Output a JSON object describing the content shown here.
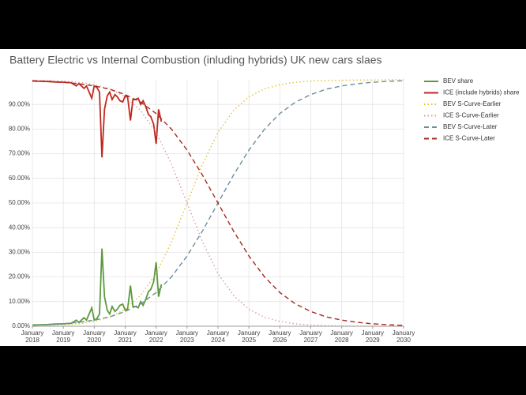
{
  "chart_data": {
    "type": "line",
    "title": "Battery Electric vs Internal Combustion (inluding hybrids) UK new cars slaes",
    "xlim": [
      2018,
      2030
    ],
    "ylim": [
      0,
      100
    ],
    "grid": true,
    "legend": "right",
    "xticks": [
      {
        "value": 2018,
        "label": "January 2018"
      },
      {
        "value": 2019,
        "label": "January 2019"
      },
      {
        "value": 2020,
        "label": "January 2020"
      },
      {
        "value": 2021,
        "label": "January 2021"
      },
      {
        "value": 2022,
        "label": "January 2022"
      },
      {
        "value": 2023,
        "label": "January 2023"
      },
      {
        "value": 2024,
        "label": "January 2024"
      },
      {
        "value": 2025,
        "label": "January 2025"
      },
      {
        "value": 2026,
        "label": "January 2026"
      },
      {
        "value": 2027,
        "label": "January 2027"
      },
      {
        "value": 2028,
        "label": "January 2028"
      },
      {
        "value": 2029,
        "label": "January 2029"
      },
      {
        "value": 2030,
        "label": "January 2030"
      }
    ],
    "yticks": [
      {
        "value": 0,
        "label": "0.00%"
      },
      {
        "value": 10,
        "label": "10.00%"
      },
      {
        "value": 20,
        "label": "20.00%"
      },
      {
        "value": 30,
        "label": "30.00%"
      },
      {
        "value": 40,
        "label": "40.00%"
      },
      {
        "value": 50,
        "label": "50.00%"
      },
      {
        "value": 60,
        "label": "60.00%"
      },
      {
        "value": 70,
        "label": "70.00%"
      },
      {
        "value": 80,
        "label": "80.00%"
      },
      {
        "value": 90,
        "label": "90.00%"
      }
    ],
    "series": [
      {
        "name": "BEV share",
        "color": "#5b9a3c",
        "dash": "solid",
        "x": [
          2018,
          2018.25,
          2018.5,
          2018.75,
          2019,
          2019.25,
          2019.42,
          2019.5,
          2019.67,
          2019.75,
          2019.92,
          2020,
          2020.08,
          2020.17,
          2020.25,
          2020.33,
          2020.42,
          2020.5,
          2020.58,
          2020.67,
          2020.75,
          2020.83,
          2020.92,
          2021,
          2021.08,
          2021.17,
          2021.25,
          2021.33,
          2021.42,
          2021.5,
          2021.58,
          2021.67,
          2021.75,
          2021.83,
          2021.92,
          2022,
          2022.08,
          2022.17
        ],
        "values": [
          0.5,
          0.6,
          0.7,
          0.9,
          1.0,
          1.2,
          2.5,
          1.5,
          3.5,
          2.5,
          7.5,
          2.5,
          3.0,
          5.0,
          31.5,
          12.0,
          6.5,
          5.0,
          8.0,
          6.0,
          7.0,
          8.5,
          9.0,
          6.5,
          7.0,
          16.5,
          8.0,
          8.0,
          7.5,
          10.0,
          8.5,
          11.0,
          14.0,
          15.0,
          18.0,
          26.0,
          12.0,
          17.0
        ]
      },
      {
        "name": "ICE (include hybrids) share",
        "color": "#c0281e",
        "dash": "solid",
        "x": [
          2018,
          2018.25,
          2018.5,
          2018.75,
          2019,
          2019.25,
          2019.42,
          2019.5,
          2019.67,
          2019.75,
          2019.92,
          2020,
          2020.08,
          2020.17,
          2020.25,
          2020.33,
          2020.42,
          2020.5,
          2020.58,
          2020.67,
          2020.75,
          2020.83,
          2020.92,
          2021,
          2021.08,
          2021.17,
          2021.25,
          2021.33,
          2021.42,
          2021.5,
          2021.58,
          2021.67,
          2021.75,
          2021.83,
          2021.92,
          2022,
          2022.08,
          2022.17
        ],
        "values": [
          99.5,
          99.4,
          99.3,
          99.1,
          99.0,
          98.8,
          97.5,
          98.5,
          96.5,
          97.5,
          92.5,
          97.5,
          97.0,
          95.0,
          68.5,
          88.0,
          93.5,
          95.0,
          92.0,
          94.0,
          93.0,
          91.5,
          91.0,
          93.5,
          93.0,
          83.5,
          92.0,
          92.0,
          92.5,
          90.0,
          91.5,
          89.0,
          86.0,
          85.0,
          82.0,
          74.0,
          88.0,
          83.0
        ]
      },
      {
        "name": "BEV S-Curve-Earlier",
        "color": "#e2c22c",
        "dash": "dotted",
        "x": [
          2018,
          2018.5,
          2019,
          2019.5,
          2020,
          2020.5,
          2021,
          2021.5,
          2022,
          2022.5,
          2023,
          2023.5,
          2024,
          2024.5,
          2025,
          2025.5,
          2026,
          2026.5,
          2027,
          2027.5,
          2028,
          2028.5,
          2029,
          2029.5,
          2030
        ],
        "values": [
          0.2,
          0.3,
          0.5,
          1.0,
          2.0,
          3.7,
          6.9,
          12.5,
          21.4,
          34.3,
          50,
          65.7,
          78.6,
          87.5,
          93.1,
          96.3,
          98.0,
          99.0,
          99.5,
          99.7,
          99.8,
          99.9,
          99.9,
          100,
          100
        ]
      },
      {
        "name": "ICE S-Curve-Earlier",
        "color": "#d99aa6",
        "dash": "dotted",
        "x": [
          2018,
          2018.5,
          2019,
          2019.5,
          2020,
          2020.5,
          2021,
          2021.5,
          2022,
          2022.5,
          2023,
          2023.5,
          2024,
          2024.5,
          2025,
          2025.5,
          2026,
          2026.5,
          2027,
          2027.5,
          2028,
          2028.5,
          2029,
          2029.5,
          2030
        ],
        "values": [
          99.8,
          99.7,
          99.5,
          99.0,
          98.0,
          96.3,
          93.1,
          87.5,
          78.6,
          65.7,
          50,
          34.3,
          21.4,
          12.5,
          6.9,
          3.7,
          2.0,
          1.0,
          0.5,
          0.3,
          0.2,
          0.1,
          0.1,
          0,
          0
        ]
      },
      {
        "name": "BEV S-Curve-Later",
        "color": "#6b8e9e",
        "dash": "dashed",
        "x": [
          2018,
          2018.5,
          2019,
          2019.5,
          2020,
          2020.5,
          2021,
          2021.5,
          2022,
          2022.5,
          2023,
          2023.5,
          2024,
          2024.5,
          2025,
          2025.5,
          2026,
          2026.5,
          2027,
          2027.5,
          2028,
          2028.5,
          2029,
          2029.5,
          2030
        ],
        "values": [
          0.4,
          0.6,
          1.0,
          1.6,
          2.5,
          3.8,
          6.0,
          9.1,
          13.7,
          20.1,
          28.5,
          38.7,
          50,
          61.3,
          71.5,
          79.9,
          86.3,
          90.9,
          94.0,
          96.2,
          97.5,
          98.4,
          99.0,
          99.4,
          99.6
        ]
      },
      {
        "name": "ICE S-Curve-Later",
        "color": "#a52a1e",
        "dash": "dashed",
        "x": [
          2018,
          2018.5,
          2019,
          2019.5,
          2020,
          2020.5,
          2021,
          2021.5,
          2022,
          2022.5,
          2023,
          2023.5,
          2024,
          2024.5,
          2025,
          2025.5,
          2026,
          2026.5,
          2027,
          2027.5,
          2028,
          2028.5,
          2029,
          2029.5,
          2030
        ],
        "values": [
          99.6,
          99.4,
          99.0,
          98.4,
          97.5,
          96.2,
          94.0,
          90.9,
          86.3,
          79.9,
          71.5,
          61.3,
          50,
          38.7,
          28.5,
          20.1,
          13.7,
          9.1,
          6.0,
          3.8,
          2.5,
          1.6,
          1.0,
          0.6,
          0.4
        ]
      }
    ]
  }
}
